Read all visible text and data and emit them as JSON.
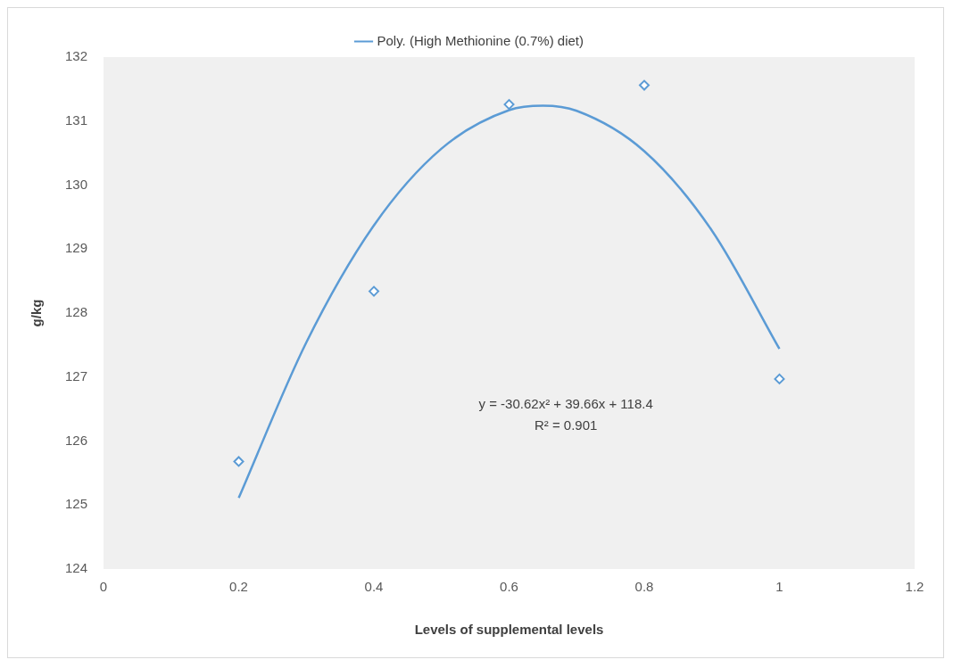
{
  "chart_data": {
    "type": "scatter",
    "xlabel": "Levels of supplemental levels",
    "ylabel": "g/kg",
    "xlim": [
      0,
      1.2
    ],
    "xticks": [
      0,
      0.2,
      0.4,
      0.6,
      0.8,
      1,
      1.2
    ],
    "ylim": [
      124,
      132
    ],
    "yticks": [
      124,
      125,
      126,
      127,
      128,
      129,
      130,
      131,
      132
    ],
    "grid": false,
    "legend": "top",
    "series": [
      {
        "type": "scatter",
        "color": "#5b9bd5",
        "marker": "diamond",
        "x": [
          0.2,
          0.4,
          0.6,
          0.8,
          1.0
        ],
        "values": [
          125.68,
          128.34,
          131.26,
          131.56,
          126.97
        ]
      },
      {
        "type": "line",
        "name": "Poly. (High Methionine (0.7%) diet)",
        "color": "#5b9bd5",
        "marker": "none",
        "x": [
          0.2,
          0.3,
          0.4,
          0.5,
          0.6,
          0.65,
          0.7,
          0.8,
          0.9,
          1.0
        ],
        "values": [
          125.11,
          127.54,
          129.37,
          130.57,
          131.17,
          131.24,
          131.16,
          130.53,
          129.29,
          127.44
        ]
      }
    ],
    "annotations": [
      "y = -30.62x² + 39.66x + 118.4",
      "R² = 0.901"
    ]
  }
}
